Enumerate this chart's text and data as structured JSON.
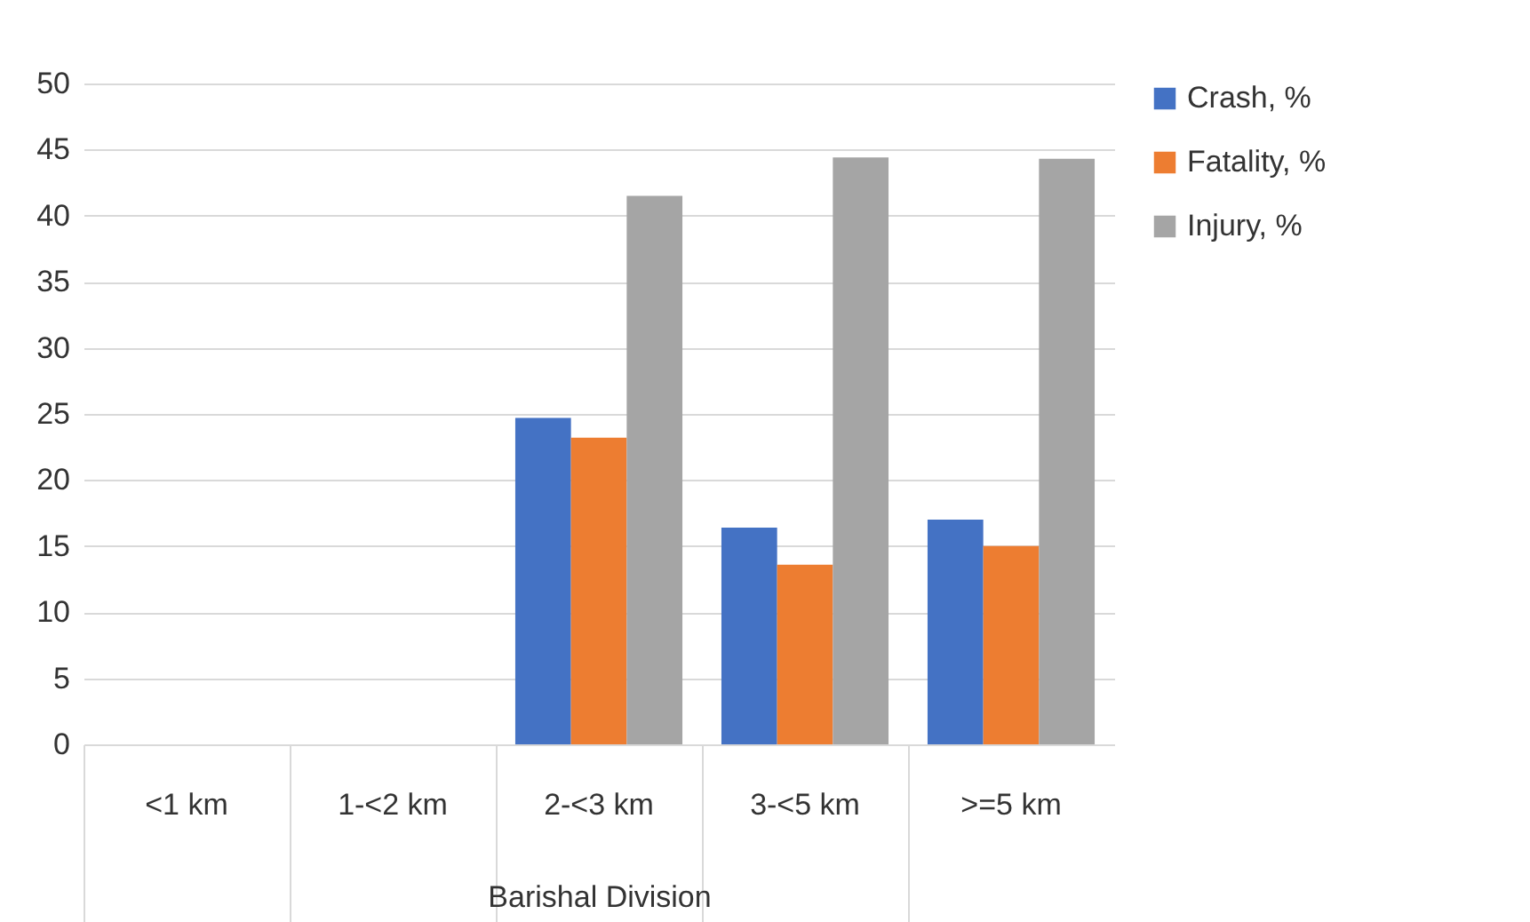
{
  "chart_data": {
    "type": "bar",
    "xlabel": "Barishal Division",
    "categories": [
      "<1 km",
      "1-<2 km",
      "2-<3 km",
      "3-<5 km",
      ">=5 km"
    ],
    "series": [
      {
        "name": "Crash, %",
        "color": "#4472c4",
        "values": [
          null,
          null,
          24.7,
          16.4,
          17.0
        ]
      },
      {
        "name": "Fatality, %",
        "color": "#ed7d31",
        "values": [
          null,
          null,
          23.2,
          13.6,
          15.0
        ]
      },
      {
        "name": "Injury, %",
        "color": "#a5a5a5",
        "values": [
          null,
          null,
          41.5,
          44.4,
          44.3
        ]
      }
    ],
    "ylim": [
      0,
      50
    ],
    "yticks": [
      0,
      5,
      10,
      15,
      20,
      25,
      30,
      35,
      40,
      45,
      50
    ],
    "grid": "y",
    "legend": "right"
  }
}
